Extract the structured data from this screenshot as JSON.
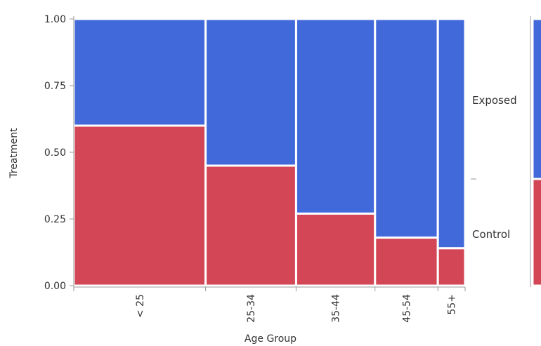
{
  "chart_data": {
    "type": "mosaic",
    "title": "",
    "xlabel": "Age Group",
    "ylabel": "Treatment",
    "ylim": [
      0,
      1
    ],
    "yticks": [
      "0.00",
      "0.25",
      "0.50",
      "0.75",
      "1.00"
    ],
    "categories": [
      "< 25",
      "25-34",
      "35-44",
      "45-54",
      "55+"
    ],
    "category_widths": [
      0.319,
      0.219,
      0.191,
      0.152,
      0.066
    ],
    "series": [
      {
        "name": "Control",
        "color": "#D34656",
        "values": [
          0.6,
          0.45,
          0.27,
          0.18,
          0.14
        ]
      },
      {
        "name": "Exposed",
        "color": "#4169D9",
        "values": [
          0.4,
          0.55,
          0.73,
          0.82,
          0.86
        ]
      }
    ],
    "side_labels": [
      "Exposed",
      "Control"
    ],
    "marginal_bar": {
      "Control": 0.4,
      "Exposed": 0.6
    }
  }
}
